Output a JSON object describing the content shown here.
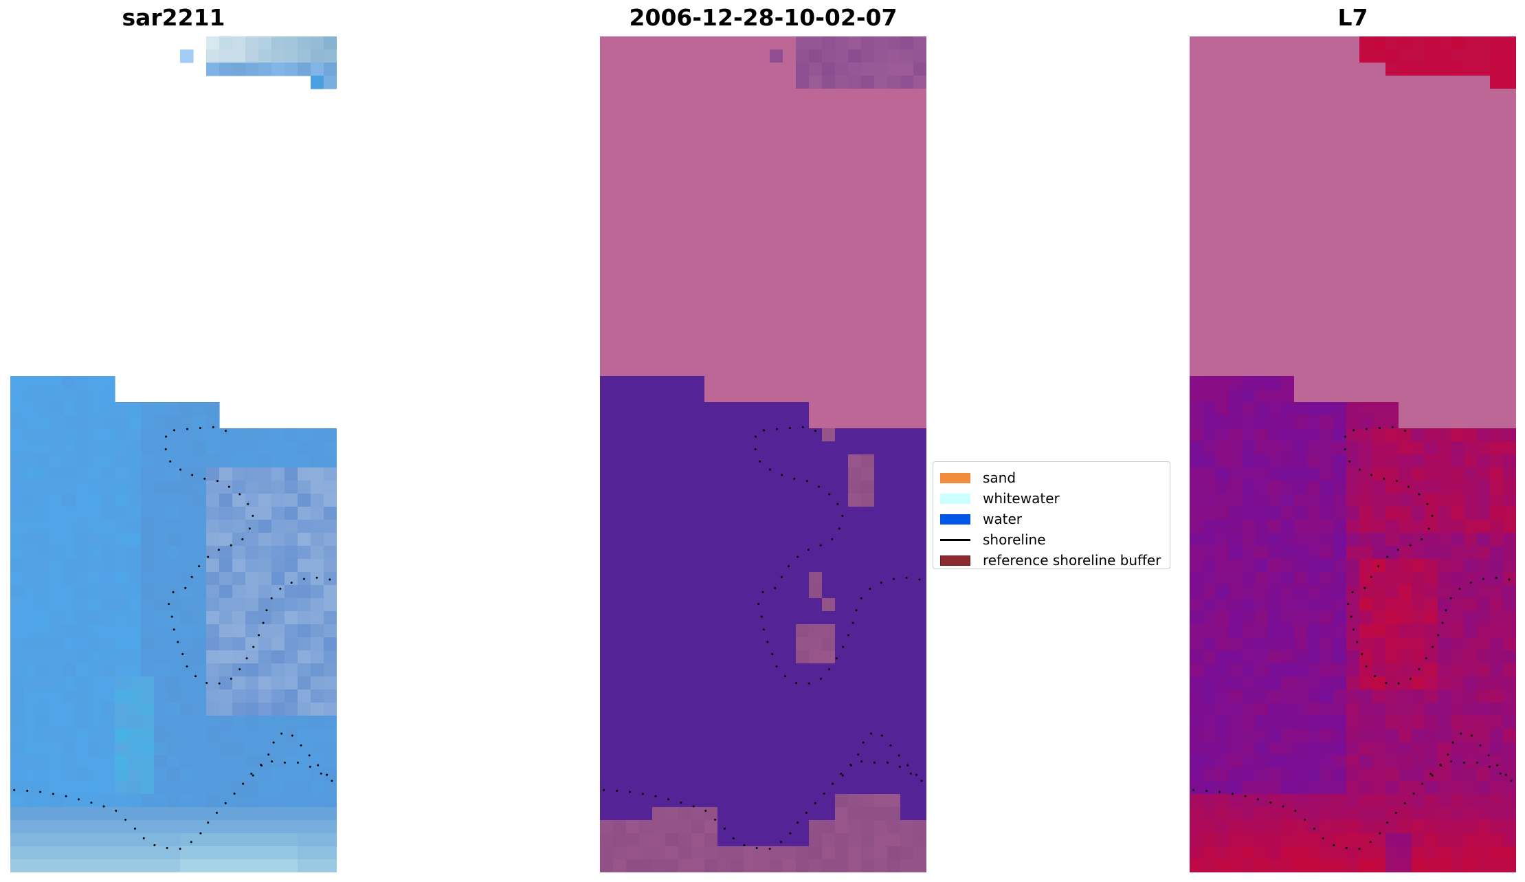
{
  "panels": [
    {
      "id": "rgb",
      "title": "sar2211"
    },
    {
      "id": "classified",
      "title": "2006-12-28-10-02-07"
    },
    {
      "id": "mndwi",
      "title": "L7"
    }
  ],
  "legend": {
    "items": [
      {
        "label": "sand",
        "color": "#f28c3c",
        "kind": "patch"
      },
      {
        "label": "whitewater",
        "color": "#ccffff",
        "kind": "patch"
      },
      {
        "label": "water",
        "color": "#0057e7",
        "kind": "patch"
      },
      {
        "label": "shoreline",
        "color": "#000000",
        "kind": "line"
      },
      {
        "label": "reference shoreline buffer",
        "color": "#8b2b30",
        "kind": "patch"
      }
    ]
  },
  "colors": {
    "no_data": "#bd6796",
    "water_class": "#542396",
    "sand_overlay": "#8d4f86",
    "l7_high": "#c4083e",
    "l7_low": "#6a10a8",
    "rgb_blue": "#4fa6e8",
    "rgb_light": "#c7e7ea"
  }
}
